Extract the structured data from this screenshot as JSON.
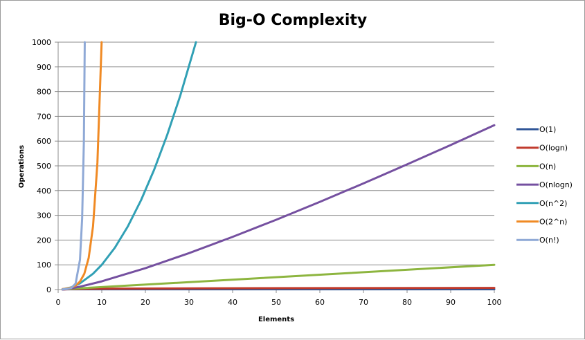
{
  "chart_data": {
    "type": "line",
    "title": "Big-O Complexity",
    "xlabel": "Elements",
    "ylabel": "Operations",
    "xlim": [
      0,
      100
    ],
    "ylim": [
      0,
      1000
    ],
    "x_ticks": [
      "0",
      "10",
      "20",
      "30",
      "40",
      "50",
      "60",
      "70",
      "80",
      "90",
      "100"
    ],
    "y_ticks": [
      "0",
      "100",
      "200",
      "300",
      "400",
      "500",
      "600",
      "700",
      "800",
      "900",
      "1000"
    ],
    "grid": "horizontal",
    "legend": "right",
    "series": [
      {
        "name": "O(1)",
        "color": "#2f5597",
        "points": [
          [
            1,
            1
          ],
          [
            100,
            1
          ]
        ]
      },
      {
        "name": "O(logn)",
        "color": "#c0392b",
        "points": [
          [
            1,
            0
          ],
          [
            2,
            1
          ],
          [
            4,
            2
          ],
          [
            8,
            3
          ],
          [
            16,
            4
          ],
          [
            32,
            5
          ],
          [
            64,
            6
          ],
          [
            100,
            6.64
          ]
        ]
      },
      {
        "name": "O(n)",
        "color": "#8db53f",
        "points": [
          [
            1,
            1
          ],
          [
            100,
            100
          ]
        ]
      },
      {
        "name": "O(nlogn)",
        "color": "#7550a0",
        "points": [
          [
            1,
            0
          ],
          [
            2,
            2
          ],
          [
            5,
            11.6
          ],
          [
            10,
            33.2
          ],
          [
            20,
            86.4
          ],
          [
            30,
            147.2
          ],
          [
            40,
            212.9
          ],
          [
            50,
            282.2
          ],
          [
            60,
            354.4
          ],
          [
            70,
            429.1
          ],
          [
            80,
            505.8
          ],
          [
            90,
            584.3
          ],
          [
            100,
            664.4
          ]
        ]
      },
      {
        "name": "O(n^2)",
        "color": "#31a0b5",
        "points": [
          [
            1,
            1
          ],
          [
            3,
            9
          ],
          [
            5,
            25
          ],
          [
            8,
            64
          ],
          [
            10,
            100
          ],
          [
            13,
            169
          ],
          [
            16,
            256
          ],
          [
            19,
            361
          ],
          [
            22,
            484
          ],
          [
            25,
            625
          ],
          [
            28,
            784
          ],
          [
            31.6,
            1000
          ]
        ]
      },
      {
        "name": "O(2^n)",
        "color": "#f08a24",
        "points": [
          [
            1,
            2
          ],
          [
            2,
            4
          ],
          [
            3,
            8
          ],
          [
            4,
            16
          ],
          [
            5,
            32
          ],
          [
            6,
            64
          ],
          [
            7,
            128
          ],
          [
            8,
            256
          ],
          [
            9,
            512
          ],
          [
            9.97,
            1000
          ]
        ]
      },
      {
        "name": "O(n!)",
        "color": "#8fa9d6",
        "points": [
          [
            1,
            1
          ],
          [
            2,
            2
          ],
          [
            3,
            6
          ],
          [
            4,
            24
          ],
          [
            5,
            120
          ],
          [
            5.5,
            287
          ],
          [
            5.9,
            600
          ],
          [
            6.1,
            1000
          ]
        ]
      }
    ]
  }
}
